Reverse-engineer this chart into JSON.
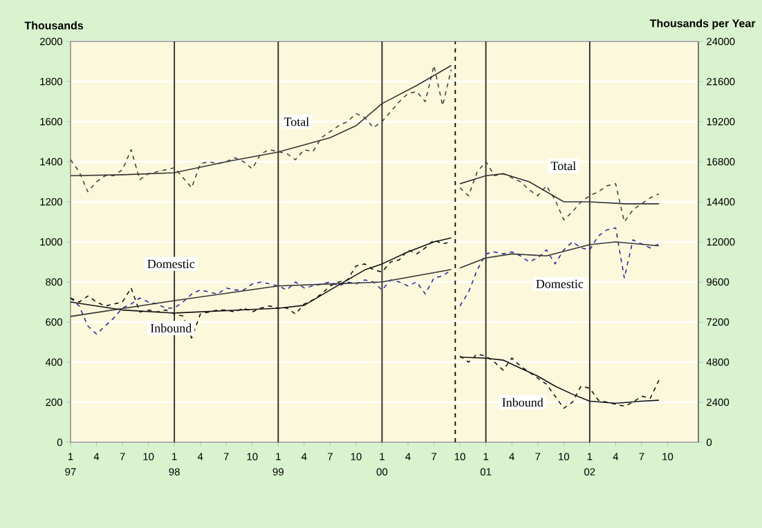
{
  "chart_data": {
    "type": "line",
    "ylabel": "Thousands",
    "y2label": "Thousands per Year",
    "x": [
      "1997-01",
      "1997-02",
      "1997-03",
      "1997-04",
      "1997-05",
      "1997-06",
      "1997-07",
      "1997-08",
      "1997-09",
      "1997-10",
      "1997-11",
      "1997-12",
      "1998-01",
      "1998-02",
      "1998-03",
      "1998-04",
      "1998-05",
      "1998-06",
      "1998-07",
      "1998-08",
      "1998-09",
      "1998-10",
      "1998-11",
      "1998-12",
      "1999-01",
      "1999-02",
      "1999-03",
      "1999-04",
      "1999-05",
      "1999-06",
      "1999-07",
      "1999-08",
      "1999-09",
      "1999-10",
      "1999-11",
      "1999-12",
      "2000-01",
      "2000-02",
      "2000-03",
      "2000-04",
      "2000-05",
      "2000-06",
      "2000-07",
      "2000-08",
      "2000-09",
      "2000-09-15",
      "2000-10",
      "2000-11",
      "2000-12",
      "2001-01",
      "2001-02",
      "2001-03",
      "2001-04",
      "2001-05",
      "2001-06",
      "2001-07",
      "2001-08",
      "2001-09",
      "2001-10",
      "2001-11",
      "2001-12",
      "2002-01",
      "2002-02",
      "2002-03",
      "2002-04",
      "2002-05",
      "2002-06",
      "2002-07",
      "2002-08",
      "2002-09"
    ],
    "xlim": [
      "1997-01",
      "2003-01-18"
    ],
    "xticks": [
      {
        "value": "1997-01",
        "label": "1"
      },
      {
        "value": "1997-04",
        "label": "4"
      },
      {
        "value": "1997-07",
        "label": "7"
      },
      {
        "value": "1997-10",
        "label": "10"
      },
      {
        "value": "1998-01",
        "label": "1"
      },
      {
        "value": "1998-04",
        "label": "4"
      },
      {
        "value": "1998-07",
        "label": "7"
      },
      {
        "value": "1998-10",
        "label": "10"
      },
      {
        "value": "1999-01",
        "label": "1"
      },
      {
        "value": "1999-04",
        "label": "4"
      },
      {
        "value": "1999-07",
        "label": "7"
      },
      {
        "value": "1999-10",
        "label": "10"
      },
      {
        "value": "2000-01",
        "label": "1"
      },
      {
        "value": "2000-04",
        "label": "4"
      },
      {
        "value": "2000-07",
        "label": "7"
      },
      {
        "value": "2000-10",
        "label": "10"
      },
      {
        "value": "2001-01",
        "label": "1"
      },
      {
        "value": "2001-04",
        "label": "4"
      },
      {
        "value": "2001-07",
        "label": "7"
      },
      {
        "value": "2001-10",
        "label": "10"
      },
      {
        "value": "2002-01",
        "label": "1"
      },
      {
        "value": "2002-04",
        "label": "4"
      },
      {
        "value": "2002-07",
        "label": "7"
      },
      {
        "value": "2002-10",
        "label": "10"
      }
    ],
    "ylim": [
      0,
      2000
    ],
    "yticks": [
      0,
      200,
      400,
      600,
      800,
      1000,
      1200,
      1400,
      1600,
      1800,
      2000
    ],
    "y2lim": [
      0,
      24000
    ],
    "y2ticks": [
      0,
      2400,
      4800,
      7200,
      9600,
      12000,
      14400,
      16800,
      19200,
      21600,
      24000
    ],
    "grid": "y",
    "marker": "none",
    "series": [
      {
        "color": "#444444",
        "line_style": "dashed",
        "values": [
          1410,
          1350,
          1250,
          1300,
          1330,
          1330,
          1360,
          1460,
          1310,
          1340,
          1350,
          1360,
          1370,
          1320,
          1270,
          1390,
          1400,
          1390,
          1400,
          1420,
          1400,
          1365,
          1440,
          1460,
          1450,
          1440,
          1410,
          1460,
          1450,
          1520,
          1550,
          1580,
          1600,
          1640,
          1620,
          1570,
          1600,
          1650,
          1700,
          1740,
          1750,
          1700,
          1880,
          1680,
          1860,
          null,
          1270,
          1230,
          1350,
          1400,
          1330,
          1340,
          1320,
          1300,
          1260,
          1230,
          1280,
          1210,
          1110,
          1150,
          1200,
          1230,
          1250,
          1280,
          1290,
          1100,
          1160,
          1190,
          1220,
          1240
        ]
      },
      {
        "color": "#2b2b9a",
        "line_style": "dashed",
        "values": [
          720,
          680,
          580,
          540,
          580,
          620,
          670,
          690,
          720,
          700,
          690,
          670,
          670,
          700,
          740,
          760,
          750,
          740,
          770,
          760,
          760,
          790,
          800,
          790,
          780,
          760,
          800,
          770,
          780,
          790,
          800,
          780,
          800,
          790,
          810,
          800,
          760,
          810,
          800,
          780,
          800,
          740,
          820,
          830,
          860,
          null,
          680,
          750,
          860,
          940,
          950,
          940,
          950,
          930,
          900,
          920,
          960,
          890,
          960,
          1000,
          970,
          960,
          1030,
          1060,
          1070,
          820,
          1010,
          990,
          970,
          990
        ]
      },
      {
        "color": "#111111",
        "line_style": "dashed",
        "values": [
          720,
          700,
          730,
          700,
          680,
          690,
          700,
          770,
          650,
          660,
          650,
          660,
          640,
          630,
          520,
          640,
          650,
          660,
          660,
          650,
          670,
          650,
          670,
          680,
          670,
          670,
          640,
          690,
          710,
          740,
          780,
          800,
          810,
          880,
          890,
          860,
          850,
          900,
          910,
          960,
          940,
          970,
          1010,
          990,
          1000,
          null,
          430,
          400,
          440,
          430,
          400,
          360,
          420,
          380,
          350,
          320,
          290,
          230,
          170,
          200,
          280,
          270,
          210,
          200,
          190,
          180,
          200,
          230,
          220,
          310
        ]
      },
      {
        "color": "#333333",
        "line_style": "solid",
        "x": [
          "1997-01",
          "1997-07",
          "1998-01",
          "1998-07",
          "1999-01",
          "1999-07",
          "1999-10",
          "2000-01",
          "2000-05",
          "2000-09",
          "2000-09-15",
          "2000-10",
          "2001-01",
          "2001-03",
          "2001-06",
          "2001-10",
          "2002-01",
          "2002-05",
          "2002-09"
        ],
        "values": [
          1330,
          1335,
          1345,
          1400,
          1448,
          1520,
          1580,
          1690,
          1780,
          1880,
          null,
          1290,
          1330,
          1340,
          1300,
          1200,
          1200,
          1190,
          1190
        ]
      },
      {
        "color": "#333333",
        "line_style": "solid",
        "x": [
          "1997-01",
          "1998-01",
          "1999-01",
          "2000-01",
          "2000-09",
          "2000-09-15",
          "2000-10",
          "2001-01",
          "2001-04",
          "2001-08",
          "2002-01",
          "2002-04",
          "2002-09"
        ],
        "values": [
          628,
          707,
          780,
          800,
          862,
          null,
          870,
          920,
          940,
          930,
          986,
          1000,
          980
        ]
      },
      {
        "color": "#111111",
        "line_style": "solid",
        "x": [
          "1997-01",
          "1997-07",
          "1998-01",
          "1999-01",
          "1999-04",
          "1999-07",
          "1999-09",
          "1999-11",
          "2000-01",
          "2000-04",
          "2000-07",
          "2000-09",
          "2000-09-15",
          "2000-10",
          "2001-01",
          "2001-03",
          "2001-05",
          "2001-07",
          "2001-09",
          "2001-11",
          "2002-01",
          "2002-04",
          "2002-07",
          "2002-09"
        ],
        "values": [
          700,
          660,
          645,
          669,
          683,
          760,
          810,
          860,
          890,
          950,
          1000,
          1020,
          null,
          425,
          420,
          410,
          370,
          330,
          280,
          240,
          205,
          195,
          205,
          210
        ]
      }
    ],
    "ref_lines": [
      {
        "axis": "x",
        "value": "1998-01",
        "color": "#222222",
        "line_style": "solid"
      },
      {
        "axis": "x",
        "value": "1999-01",
        "color": "#222222",
        "line_style": "solid"
      },
      {
        "axis": "x",
        "value": "2000-01",
        "color": "#222222",
        "line_style": "solid"
      },
      {
        "axis": "x",
        "value": "2000-09-15",
        "color": "#000000",
        "line_style": "dashed"
      },
      {
        "axis": "x",
        "value": "2001-01",
        "color": "#222222",
        "line_style": "solid"
      },
      {
        "axis": "x",
        "value": "2002-01",
        "color": "#222222",
        "line_style": "solid"
      }
    ],
    "annotations": [
      "Total",
      "Total",
      "Domestic",
      "Domestic",
      "Inbound",
      "Inbound",
      "97",
      "98",
      "99",
      "00",
      "01",
      "02"
    ]
  }
}
